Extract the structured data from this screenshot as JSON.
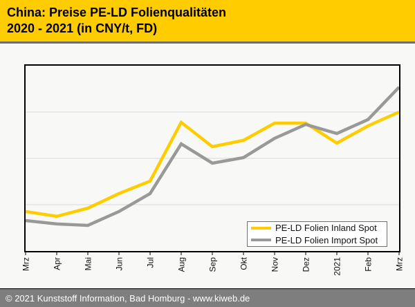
{
  "header": {
    "title_line1": "China: Preise PE-LD Folienqualitäten",
    "title_line2": "2020 - 2021 (in CNY/t, FD)",
    "background_color": "#FFCC00",
    "text_color": "#000000"
  },
  "chart_data": {
    "type": "line",
    "title": "China: Preise PE-LD Folienqualitäten 2020 - 2021 (in CNY/t, FD)",
    "xlabel": "",
    "ylabel": "",
    "unit": "CNY/t",
    "categories": [
      "Mrz",
      "Apr",
      "Mai",
      "Jun",
      "Jul",
      "Aug",
      "Sep",
      "Okt",
      "Nov",
      "Dez",
      "2021",
      "Feb",
      "Mrz"
    ],
    "y_axis": {
      "tick_labels_visible": false,
      "gridline_count": 3,
      "gridline_fractions_from_top": [
        0.25,
        0.5,
        0.75
      ]
    },
    "gridline_color": "#D9D9D9",
    "plot_border_color": "#000000",
    "tick_color": "#000000",
    "x_label_color": "#111111",
    "x_label_rotation_deg": -90,
    "series": [
      {
        "name": "PE-LD Folien Inland Spot",
        "color": "#FFCC00",
        "values_pct_of_axis_height": [
          21.3,
          18.7,
          23.1,
          31.0,
          37.7,
          69.4,
          56.3,
          59.7,
          69.0,
          69.0,
          58.2,
          67.5,
          75.0
        ]
      },
      {
        "name": "PE-LD Folien Import Spot",
        "color": "#999999",
        "values_pct_of_axis_height": [
          16.4,
          14.6,
          13.8,
          21.3,
          31.0,
          57.8,
          47.4,
          50.4,
          60.8,
          68.3,
          63.4,
          70.9,
          88.4
        ]
      }
    ],
    "legend_position": "inside-bottom-right",
    "note": "Y-axis has no visible tick labels; series values recorded as percent of plot height above the x-axis baseline."
  },
  "footer": {
    "text": "© 2021 Kunststoff Information, Bad Homburg - www.kiweb.de",
    "background_color": "#7E7E7E",
    "text_color": "#FFFFFF"
  }
}
